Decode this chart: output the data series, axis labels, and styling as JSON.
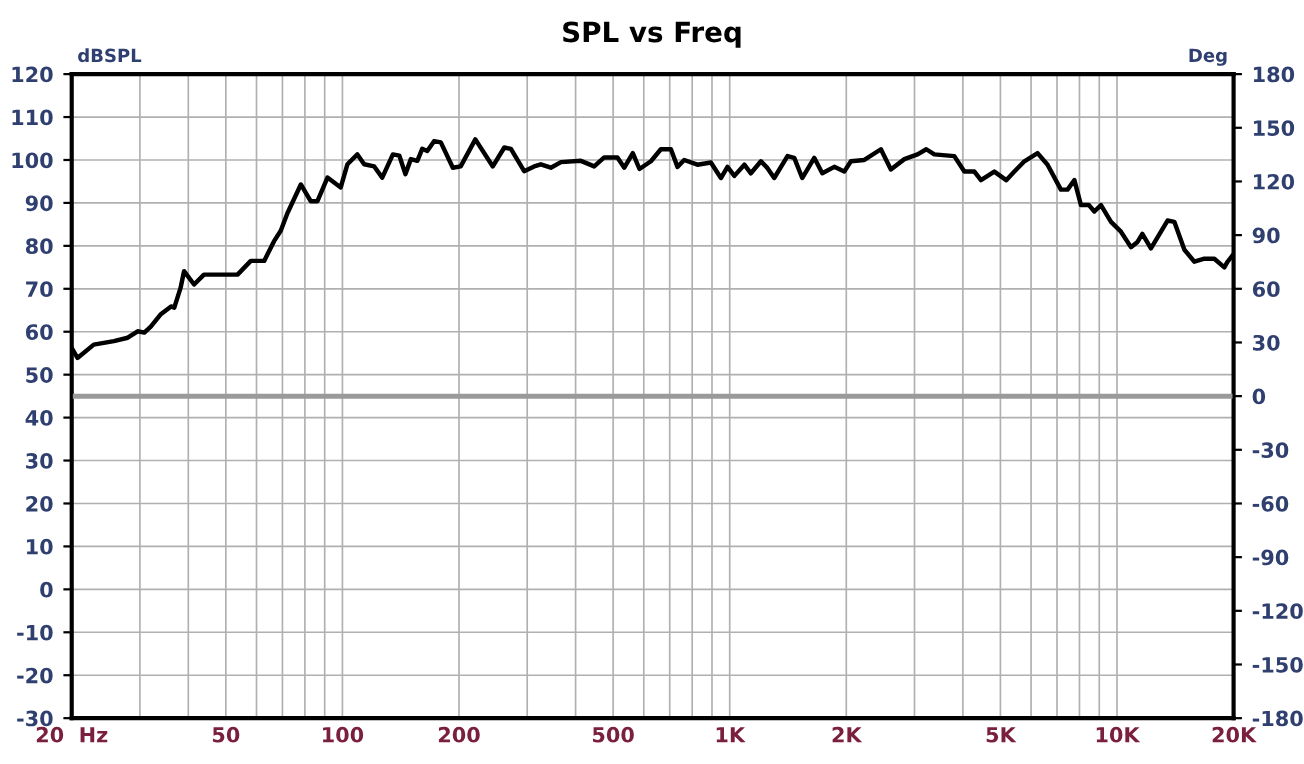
{
  "chart_data": {
    "type": "line",
    "title": "SPL vs Freq",
    "ylabel": "dBSPL",
    "y2label": "Deg",
    "log": "x",
    "grid": true,
    "legend": false,
    "marker": "none",
    "line_style": "solid",
    "xlim": [
      20,
      20000
    ],
    "xticks": [
      {
        "value": 20,
        "label": "20  Hz"
      },
      {
        "value": 30,
        "label": null
      },
      {
        "value": 40,
        "label": null
      },
      50,
      {
        "value": 60,
        "label": null
      },
      {
        "value": 70,
        "label": null
      },
      {
        "value": 80,
        "label": null
      },
      {
        "value": 90,
        "label": null
      },
      100,
      200,
      {
        "value": 300,
        "label": null
      },
      {
        "value": 400,
        "label": null
      },
      500,
      {
        "value": 600,
        "label": null
      },
      {
        "value": 700,
        "label": null
      },
      {
        "value": 800,
        "label": null
      },
      {
        "value": 900,
        "label": null
      },
      {
        "value": 1000,
        "label": "1K"
      },
      {
        "value": 2000,
        "label": "2K"
      },
      {
        "value": 3000,
        "label": null
      },
      {
        "value": 4000,
        "label": null
      },
      {
        "value": 5000,
        "label": "5K"
      },
      {
        "value": 6000,
        "label": null
      },
      {
        "value": 7000,
        "label": null
      },
      {
        "value": 8000,
        "label": null
      },
      {
        "value": 9000,
        "label": null
      },
      {
        "value": 10000,
        "label": "10K"
      },
      {
        "value": 20000,
        "label": "20K"
      }
    ],
    "ylim": [
      -30,
      120
    ],
    "yticks": [
      -30,
      -20,
      -10,
      0,
      10,
      20,
      30,
      40,
      50,
      60,
      70,
      80,
      90,
      100,
      110,
      120
    ],
    "y2lim": [
      -180,
      180
    ],
    "y2ticks": [
      -180,
      -150,
      -120,
      -90,
      -60,
      -30,
      0,
      30,
      60,
      90,
      120,
      150,
      180
    ],
    "ref_lines": [
      {
        "axis": "y2",
        "value": 0,
        "color": "#9a9a9a"
      }
    ],
    "series": [
      {
        "color": "#000000",
        "x": [
          20,
          20.7,
          22.8,
          25.7,
          27.9,
          29.6,
          30.8,
          32,
          33.9,
          36.1,
          36.8,
          38.2,
          39,
          41.4,
          43.9,
          48.5,
          53.6,
          58,
          62.8,
          66.6,
          69.3,
          72.1,
          78.1,
          82.8,
          86.2,
          91.5,
          99,
          103,
          109.3,
          113.8,
          120.8,
          126.7,
          135,
          140.3,
          145.4,
          150.2,
          156.1,
          160.7,
          165.6,
          172.6,
          179.5,
          192.8,
          202,
          220.4,
          244.5,
          261.8,
          272.3,
          294.6,
          312.7,
          325.3,
          345.3,
          366.6,
          412.8,
          446.8,
          474.2,
          513,
          534.3,
          562.1,
          584.8,
          626,
          664,
          705,
          733,
          763,
          825,
          894,
          949,
          987,
          1028,
          1091,
          1134,
          1204,
          1252,
          1303,
          1410,
          1468,
          1539,
          1653,
          1734,
          1862,
          1976,
          2055,
          2226,
          2457,
          2607,
          2825,
          3055,
          3218,
          3375,
          3801,
          4035,
          4284,
          4454,
          4822,
          5177,
          5432,
          5766,
          6236,
          6617,
          7164,
          7452,
          7762,
          8071,
          8464,
          8741,
          9091,
          9650,
          10237,
          10864,
          11297,
          11626,
          12236,
          13506,
          14062,
          14928,
          15845,
          16813,
          17836,
          18930,
          19300,
          20000
        ],
        "values": [
          56.2,
          53.9,
          57,
          57.8,
          58.6,
          60.1,
          59.8,
          61.2,
          64,
          65.9,
          65.6,
          70.2,
          74.1,
          71,
          73.3,
          73.3,
          73.3,
          76.5,
          76.5,
          81.1,
          83.5,
          87.6,
          94.3,
          90.4,
          90.4,
          95.9,
          93.6,
          99,
          101.3,
          99,
          98.5,
          95.9,
          101.3,
          101,
          96.7,
          100.2,
          99.8,
          102.6,
          102.1,
          104.4,
          104.1,
          98.2,
          98.5,
          104.8,
          98.5,
          102.9,
          102.6,
          97.4,
          98.5,
          99,
          98.2,
          99.5,
          99.8,
          98.5,
          100.6,
          100.6,
          98.2,
          101.6,
          97.9,
          99.7,
          102.5,
          102.5,
          98.4,
          100,
          98.9,
          99.4,
          95.8,
          98.4,
          96.3,
          98.9,
          96.9,
          99.7,
          98.1,
          95.8,
          100.9,
          100.5,
          95.8,
          100.5,
          96.9,
          98.4,
          97.3,
          99.7,
          100,
          102.5,
          97.8,
          100.2,
          101.3,
          102.5,
          101.3,
          100.9,
          97.3,
          97.3,
          95.3,
          97.3,
          95.3,
          97.3,
          99.7,
          101.6,
          98.9,
          93.1,
          93.1,
          95.3,
          89.5,
          89.5,
          88,
          89.5,
          85.6,
          83.3,
          79.7,
          80.9,
          82.8,
          79.4,
          85.9,
          85.6,
          79.1,
          76.3,
          77,
          77,
          75,
          76.3,
          78.1
        ]
      }
    ]
  }
}
